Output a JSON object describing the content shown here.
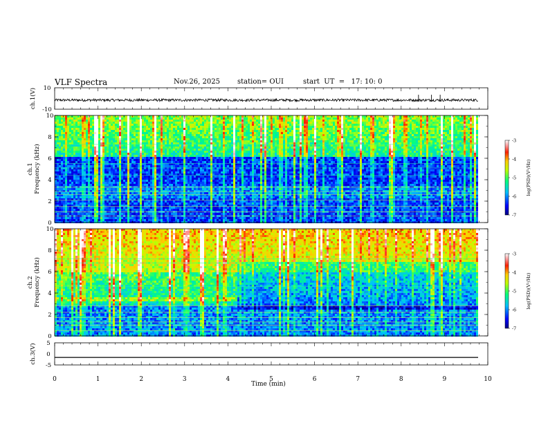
{
  "header": {
    "title": "VLF Spectra",
    "date": "Nov.26, 2025",
    "station": "station= OUI",
    "start": "start  UT  =   17: 10: 0"
  },
  "chart_data": [
    {
      "type": "line",
      "panel": "ch1-waveform",
      "ylabel": "ch.1(V)",
      "ylim": [
        -10,
        10
      ],
      "yticks": [
        "10",
        "-10"
      ],
      "xlim": [
        0,
        10
      ],
      "series": [
        {
          "name": "ch.1 waveform",
          "baseline": -1.5,
          "approx_amplitude": 1.2,
          "spikes_at_min": [
            8.4,
            8.7,
            8.9
          ]
        }
      ]
    },
    {
      "type": "heatmap",
      "panel": "ch1-spectrogram",
      "ylabel_line1": "ch.1",
      "ylabel_line2": "Frequency  (kHz)",
      "ylim": [
        0,
        10
      ],
      "yticks": [
        "0",
        "2",
        "4",
        "6",
        "8",
        "10"
      ],
      "xlim": [
        0,
        9.85
      ],
      "colorbar": {
        "label": "log(PSD)(V²/Hz)",
        "range": [
          -7,
          -3
        ],
        "ticks": [
          "-3",
          "-4",
          "-5",
          "-6",
          "-7"
        ]
      },
      "description_levels": {
        "above_6kHz": -5.3,
        "band_4_6kHz": -6.3,
        "band_2.5_3.5kHz": -6.0,
        "below_2kHz": -6.3
      }
    },
    {
      "type": "heatmap",
      "panel": "ch2-spectrogram",
      "ylabel_line1": "ch.2",
      "ylabel_line2": "Frequency  (kHz)",
      "ylim": [
        0,
        10
      ],
      "yticks": [
        "0",
        "2",
        "4",
        "6",
        "8",
        "10"
      ],
      "xlim": [
        0,
        9.85
      ],
      "colorbar": {
        "label": "log(PSD)(V²/Hz)",
        "range": [
          -7,
          -3
        ],
        "ticks": [
          "-3",
          "-4",
          "-5",
          "-6",
          "-7"
        ]
      },
      "description_levels": {
        "above_6kHz": -4.6,
        "band_3.4_3.7kHz_before_4.2min": -4.8,
        "below_3kHz": -6.0
      }
    },
    {
      "type": "line",
      "panel": "ch3-waveform",
      "ylabel": "ch.3(V)",
      "ylim": [
        -5,
        5
      ],
      "yticks": [
        "5",
        "0",
        "-5"
      ],
      "xlim": [
        0,
        10
      ],
      "series": [
        {
          "name": "ch.3 waveform",
          "constant_value": -1.6
        }
      ]
    }
  ],
  "xaxis": {
    "label": "Time  (min)",
    "ticks": [
      "0",
      "1",
      "2",
      "3",
      "4",
      "5",
      "6",
      "7",
      "8",
      "9",
      "10"
    ]
  }
}
